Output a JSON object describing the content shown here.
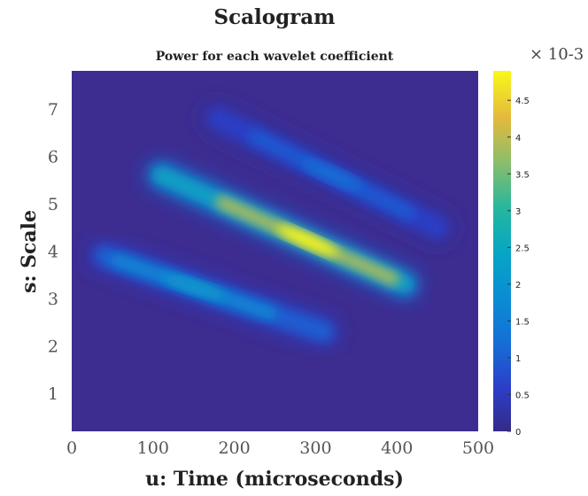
{
  "chart_data": {
    "type": "heatmap",
    "title": "Scalogram",
    "subtitle": "Power for each wavelet coefficient",
    "xlabel": "u: Time (microseconds)",
    "ylabel": "s: Scale",
    "xlim": [
      0,
      500
    ],
    "ylim": [
      0.2,
      7.8
    ],
    "x_ticks": [
      "0",
      "100",
      "200",
      "300",
      "400",
      "500"
    ],
    "y_ticks": [
      "1",
      "2",
      "3",
      "4",
      "5",
      "6",
      "7"
    ],
    "colorbar": {
      "range": [
        0,
        0.0049
      ],
      "ticks": [
        "0",
        "0.5",
        "1",
        "1.5",
        "2",
        "2.5",
        "3",
        "3.5",
        "4",
        "4.5"
      ],
      "exponent": "× 10-3",
      "colormap": "parula"
    },
    "ridges": [
      {
        "x_range": [
          40,
          310
        ],
        "scale_at_start": 3.9,
        "scale_at_end": 2.3,
        "peak_x": 150,
        "peak_power": 0.0021
      },
      {
        "x_range": [
          110,
          410
        ],
        "scale_at_start": 5.6,
        "scale_at_end": 3.3,
        "peak_x": 290,
        "peak_power": 0.0049
      },
      {
        "x_range": [
          180,
          450
        ],
        "scale_at_start": 6.8,
        "scale_at_end": 4.5,
        "peak_x": 320,
        "peak_power": 0.0012
      }
    ],
    "grid": false,
    "background_color": "#3d2d91"
  }
}
